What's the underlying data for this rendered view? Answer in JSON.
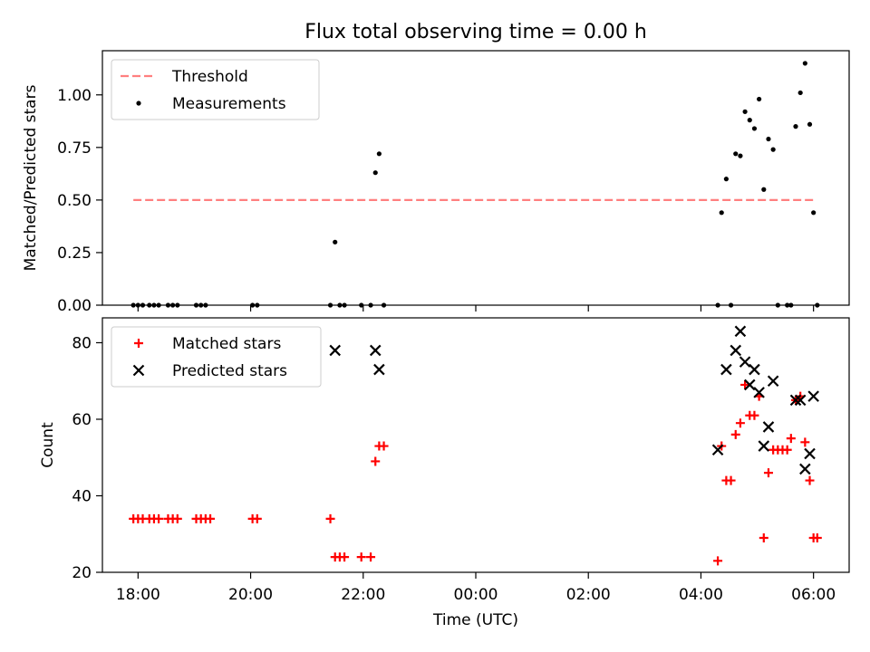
{
  "title": "Flux total observing time = 0.00 h",
  "colors": {
    "threshold": "#ff7f7f",
    "measurements": "#000000",
    "matched": "#ff0000",
    "predicted": "#000000"
  },
  "chart_data": [
    {
      "type": "scatter",
      "panel": "top",
      "xlabel": "",
      "ylabel": "Matched/Predicted stars",
      "xlim": [
        "17:22",
        "06:38"
      ],
      "ylim": [
        0,
        1.21
      ],
      "yticks": [
        0.0,
        0.25,
        0.5,
        0.75,
        1.0
      ],
      "ytick_labels": [
        "0.00",
        "0.25",
        "0.50",
        "0.75",
        "1.00"
      ],
      "grid": false,
      "legend_position": "top-left",
      "legend": [
        "Threshold",
        "Measurements"
      ],
      "threshold": {
        "name": "Threshold",
        "y": 0.5,
        "x_range": [
          "17:55",
          "06:00"
        ],
        "style": "dashed"
      },
      "series": [
        {
          "name": "Measurements",
          "marker": "dot",
          "points": [
            [
              "17:55",
              0
            ],
            [
              "18:00",
              0
            ],
            [
              "18:05",
              0
            ],
            [
              "18:12",
              0
            ],
            [
              "18:17",
              0
            ],
            [
              "18:22",
              0
            ],
            [
              "18:32",
              0
            ],
            [
              "18:37",
              0
            ],
            [
              "18:42",
              0
            ],
            [
              "19:02",
              0
            ],
            [
              "19:07",
              0
            ],
            [
              "19:12",
              0
            ],
            [
              "20:02",
              0
            ],
            [
              "20:07",
              0
            ],
            [
              "21:25",
              0
            ],
            [
              "21:30",
              0.3
            ],
            [
              "21:35",
              0
            ],
            [
              "21:40",
              0
            ],
            [
              "21:58",
              0
            ],
            [
              "22:08",
              0
            ],
            [
              "22:13",
              0.63
            ],
            [
              "22:17",
              0.72
            ],
            [
              "22:22",
              0
            ],
            [
              "04:18",
              0
            ],
            [
              "04:22",
              0.44
            ],
            [
              "04:27",
              0.6
            ],
            [
              "04:32",
              0
            ],
            [
              "04:37",
              0.72
            ],
            [
              "04:42",
              0.71
            ],
            [
              "04:47",
              0.92
            ],
            [
              "04:52",
              0.88
            ],
            [
              "04:57",
              0.84
            ],
            [
              "05:02",
              0.98
            ],
            [
              "05:07",
              0.55
            ],
            [
              "05:12",
              0.79
            ],
            [
              "05:17",
              0.74
            ],
            [
              "05:22",
              0
            ],
            [
              "05:32",
              0
            ],
            [
              "05:36",
              0
            ],
            [
              "05:41",
              0.85
            ],
            [
              "05:46",
              1.01
            ],
            [
              "05:51",
              1.15
            ],
            [
              "05:56",
              0.86
            ],
            [
              "06:00",
              0.44
            ],
            [
              "06:04",
              0
            ]
          ]
        }
      ]
    },
    {
      "type": "scatter",
      "panel": "bottom",
      "xlabel": "Time (UTC)",
      "ylabel": "Count",
      "xlim": [
        "17:22",
        "06:38"
      ],
      "ylim": [
        20,
        86.5
      ],
      "yticks": [
        20,
        40,
        60,
        80
      ],
      "ytick_labels": [
        "20",
        "40",
        "60",
        "80"
      ],
      "xticks": [
        "18:00",
        "20:00",
        "22:00",
        "00:00",
        "02:00",
        "04:00",
        "06:00"
      ],
      "grid": false,
      "legend_position": "top-left",
      "legend": [
        "Matched stars",
        "Predicted stars"
      ],
      "series": [
        {
          "name": "Matched stars",
          "marker": "plus",
          "points": [
            [
              "17:55",
              34
            ],
            [
              "18:00",
              34
            ],
            [
              "18:05",
              34
            ],
            [
              "18:12",
              34
            ],
            [
              "18:17",
              34
            ],
            [
              "18:22",
              34
            ],
            [
              "18:32",
              34
            ],
            [
              "18:37",
              34
            ],
            [
              "18:42",
              34
            ],
            [
              "19:02",
              34
            ],
            [
              "19:07",
              34
            ],
            [
              "19:12",
              34
            ],
            [
              "19:17",
              34
            ],
            [
              "20:02",
              34
            ],
            [
              "20:07",
              34
            ],
            [
              "21:25",
              34
            ],
            [
              "21:30",
              24
            ],
            [
              "21:35",
              24
            ],
            [
              "21:40",
              24
            ],
            [
              "21:58",
              24
            ],
            [
              "22:08",
              24
            ],
            [
              "22:13",
              49
            ],
            [
              "22:17",
              53
            ],
            [
              "22:22",
              53
            ],
            [
              "04:18",
              23
            ],
            [
              "04:22",
              53
            ],
            [
              "04:27",
              44
            ],
            [
              "04:32",
              44
            ],
            [
              "04:37",
              56
            ],
            [
              "04:42",
              59
            ],
            [
              "04:47",
              69
            ],
            [
              "04:52",
              61
            ],
            [
              "04:57",
              61
            ],
            [
              "05:02",
              66
            ],
            [
              "05:07",
              29
            ],
            [
              "05:12",
              46
            ],
            [
              "05:17",
              52
            ],
            [
              "05:22",
              52
            ],
            [
              "05:27",
              52
            ],
            [
              "05:32",
              52
            ],
            [
              "05:36",
              55
            ],
            [
              "05:41",
              65
            ],
            [
              "05:46",
              66
            ],
            [
              "05:51",
              54
            ],
            [
              "05:56",
              44
            ],
            [
              "06:00",
              29
            ],
            [
              "06:04",
              29
            ]
          ]
        },
        {
          "name": "Predicted stars",
          "marker": "x",
          "points": [
            [
              "21:30",
              78
            ],
            [
              "22:13",
              78
            ],
            [
              "22:17",
              73
            ],
            [
              "04:18",
              52
            ],
            [
              "04:27",
              73
            ],
            [
              "04:37",
              78
            ],
            [
              "04:42",
              83
            ],
            [
              "04:47",
              75
            ],
            [
              "04:52",
              69
            ],
            [
              "04:57",
              73
            ],
            [
              "05:02",
              67
            ],
            [
              "05:07",
              53
            ],
            [
              "05:12",
              58
            ],
            [
              "05:17",
              70
            ],
            [
              "05:41",
              65
            ],
            [
              "05:46",
              65
            ],
            [
              "05:51",
              47
            ],
            [
              "05:56",
              51
            ],
            [
              "06:00",
              66
            ]
          ]
        }
      ]
    }
  ]
}
